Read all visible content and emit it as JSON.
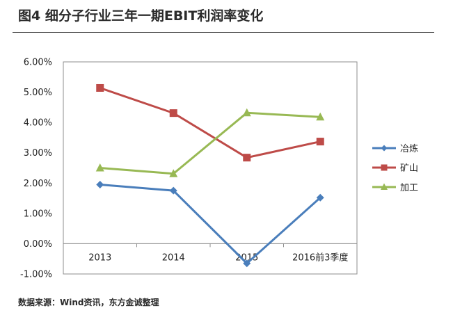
{
  "figure": {
    "title": "图4  细分子行业三年一期EBIT利润率变化",
    "source": "数据来源：Wind资讯，东方金诚整理"
  },
  "chart_data": {
    "type": "line",
    "categories": [
      "2013",
      "2014",
      "2015",
      "2016前3季度"
    ],
    "series": [
      {
        "name": "冶炼",
        "values": [
          1.95,
          1.75,
          -0.65,
          1.52
        ],
        "color": "#4a7ebb",
        "marker": "diamond"
      },
      {
        "name": "矿山",
        "values": [
          5.14,
          4.31,
          2.84,
          3.37
        ],
        "color": "#be4b48",
        "marker": "square"
      },
      {
        "name": "加工",
        "values": [
          2.5,
          2.31,
          4.32,
          4.18
        ],
        "color": "#98b954",
        "marker": "triangle"
      }
    ],
    "ylim": [
      -1.0,
      6.0
    ],
    "yticks": [
      -1,
      0,
      1,
      2,
      3,
      4,
      5,
      6
    ],
    "ytick_labels": [
      "-1.00%",
      "0.00%",
      "1.00%",
      "2.00%",
      "3.00%",
      "4.00%",
      "5.00%",
      "6.00%"
    ],
    "grid": false,
    "legend": "right"
  }
}
